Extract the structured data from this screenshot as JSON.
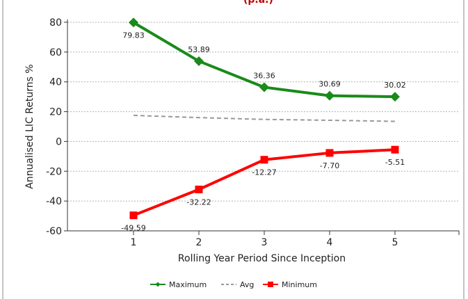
{
  "chart_data": {
    "type": "line",
    "title": "",
    "top_title_fragment": "(p.a.)",
    "xlabel": "Rolling Year Period Since Inception",
    "ylabel": "Annualised LIC Returns %",
    "categories": [
      "1",
      "2",
      "3",
      "4",
      "5"
    ],
    "ylim": [
      -60,
      80
    ],
    "yticks": [
      -60,
      -40,
      -20,
      0,
      20,
      40,
      60,
      80
    ],
    "grid": true,
    "legend_position": "bottom",
    "series": [
      {
        "name": "Maximum",
        "color": "#1a8a1a",
        "marker": "diamond",
        "dash": "solid",
        "values": [
          79.83,
          53.89,
          36.36,
          30.69,
          30.02
        ],
        "labels": [
          "79.83",
          "53.89",
          "36.36",
          "30.69",
          "30.02"
        ]
      },
      {
        "name": "Avg",
        "color": "#999999",
        "marker": "none",
        "dash": "dashed",
        "values": [
          17.5,
          16.0,
          14.8,
          14.2,
          13.5
        ],
        "labels": []
      },
      {
        "name": "Minimum",
        "color": "#ff0000",
        "marker": "square",
        "dash": "solid",
        "values": [
          -49.59,
          -32.22,
          -12.27,
          -7.7,
          -5.51
        ],
        "labels": [
          "-49.59",
          "-32.22",
          "-12.27",
          "-7.70",
          "-5.51"
        ]
      }
    ]
  }
}
